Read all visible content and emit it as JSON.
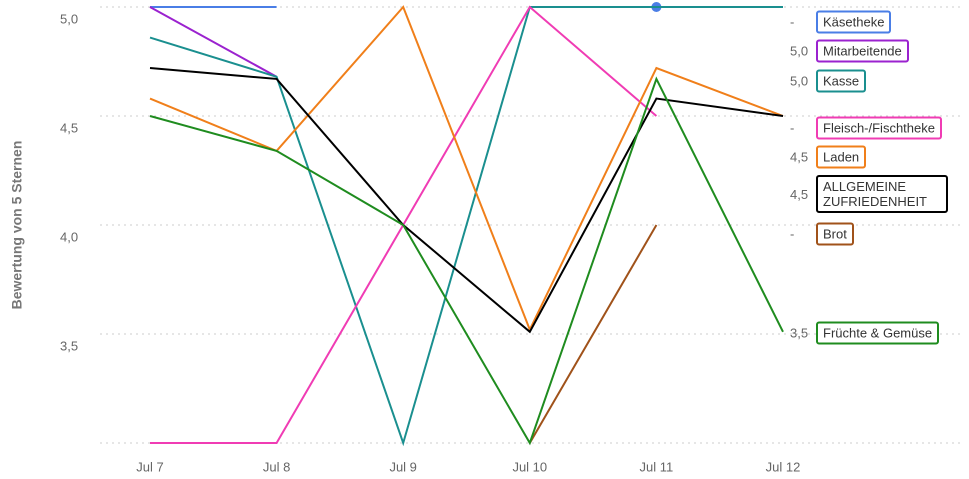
{
  "chart_data": {
    "type": "line",
    "y_label": "Bewertung von 5 Sternen",
    "categories": [
      "Jul 7",
      "Jul 8",
      "Jul 9",
      "Jul 10",
      "Jul 11",
      "Jul 12"
    ],
    "ylim": [
      3,
      5
    ],
    "yticks": [
      {
        "value": 5,
        "label": "5,0"
      },
      {
        "value": 4.5,
        "label": "4,5"
      },
      {
        "value": 4,
        "label": "4,0"
      },
      {
        "value": 3.5,
        "label": "3,5"
      }
    ],
    "grid": true,
    "series": [
      {
        "name": "Käsetheke",
        "color": "#4a7ee6",
        "values": [
          5,
          5,
          null,
          null,
          5,
          null
        ],
        "end_label": "-"
      },
      {
        "name": "Mitarbeitende",
        "color": "#9b22cf",
        "values": [
          5,
          4.68,
          null,
          5,
          5,
          5
        ],
        "end_label": "5,0"
      },
      {
        "name": "Kasse",
        "color": "#1a8f8f",
        "values": [
          4.86,
          4.68,
          3,
          5,
          5,
          5
        ],
        "end_label": "5,0"
      },
      {
        "name": "Fleisch-/Fischtheke",
        "color": "#f03cb4",
        "values": [
          3,
          3,
          4,
          5,
          4.5,
          null
        ],
        "end_label": "-"
      },
      {
        "name": "Laden",
        "color": "#f07f1a",
        "values": [
          4.58,
          4.34,
          5,
          3.52,
          4.72,
          4.5
        ],
        "end_label": "4,5"
      },
      {
        "name": "ALLGEMEINE ZUFRIEDENHEIT",
        "color": "#000000",
        "values": [
          4.72,
          4.67,
          4,
          3.51,
          4.58,
          4.5
        ],
        "end_label": "4,5"
      },
      {
        "name": "Brot",
        "color": "#a0521a",
        "values": [
          null,
          null,
          null,
          3,
          4,
          null
        ],
        "end_label": "-"
      },
      {
        "name": "Früchte & Gemüse",
        "color": "#1f8c1f",
        "values": [
          4.5,
          4.34,
          4,
          3,
          4.67,
          3.51
        ],
        "end_label": "3,5"
      }
    ]
  }
}
